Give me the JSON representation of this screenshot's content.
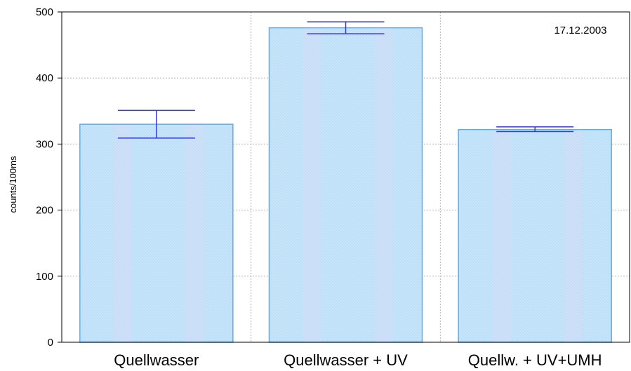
{
  "chart_data": {
    "type": "bar",
    "categories": [
      "Quellwasser",
      "Quellwasser + UV",
      "Quellw. + UV+UMH"
    ],
    "values": [
      330,
      476,
      322
    ],
    "errors": [
      {
        "low": 309,
        "high": 351
      },
      {
        "low": 467,
        "high": 485
      },
      {
        "low": 319,
        "high": 326
      }
    ],
    "ylabel": "counts/100ms",
    "xlabel": "",
    "ylim": [
      0,
      500
    ],
    "yticks": [
      0,
      100,
      200,
      300,
      400,
      500
    ],
    "annotation": "17.12.2003",
    "grid": true,
    "colors": {
      "bar_fill": "#c6e6fb",
      "bar_stripe": "#d3dcf6",
      "bar_edge": "#5aaef0",
      "error_bar": "#3a3ad8",
      "grid": "#b4b4b4"
    }
  }
}
